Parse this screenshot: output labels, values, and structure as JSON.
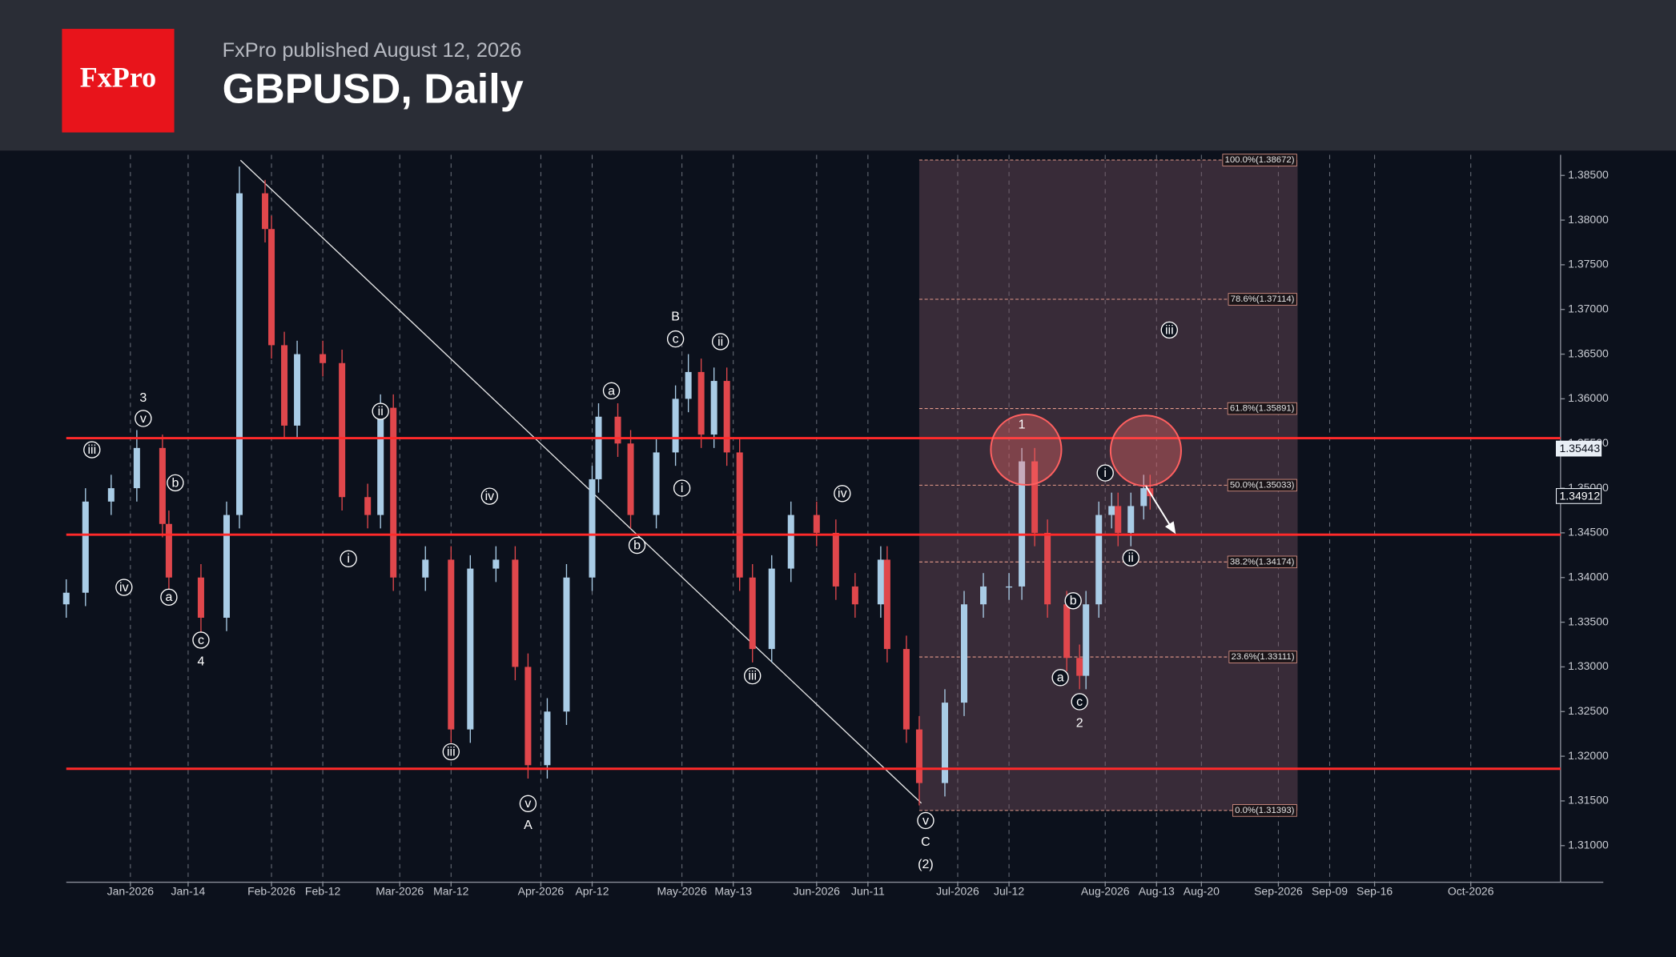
{
  "header": {
    "logo": "FxPro",
    "publisher": "FxPro published August 12, 2026",
    "title": "GBPUSD, Daily"
  },
  "chart_data": {
    "type": "candlestick",
    "x": [
      "2025-12-18",
      "2025-12-23",
      "2025-12-29",
      "2026-01-02",
      "2026-01-08",
      "2026-01-09",
      "2026-01-16",
      "2026-01-22",
      "2026-01-26",
      "2026-01-30",
      "2026-02-02",
      "2026-02-04",
      "2026-02-06",
      "2026-02-12",
      "2026-02-17",
      "2026-02-23",
      "2026-02-25",
      "2026-02-27",
      "2026-03-06",
      "2026-03-12",
      "2026-03-17",
      "2026-03-23",
      "2026-03-26",
      "2026-03-30",
      "2026-04-02",
      "2026-04-07",
      "2026-04-13",
      "2026-04-14",
      "2026-04-17",
      "2026-04-21",
      "2026-04-27",
      "2026-04-30",
      "2026-05-04",
      "2026-05-06",
      "2026-05-08",
      "2026-05-12",
      "2026-05-14",
      "2026-05-18",
      "2026-05-21",
      "2026-05-26",
      "2026-06-01",
      "2026-06-04",
      "2026-06-09",
      "2026-06-15",
      "2026-06-16",
      "2026-06-19",
      "2026-06-23",
      "2026-06-29",
      "2026-07-02",
      "2026-07-07",
      "2026-07-13",
      "2026-07-15",
      "2026-07-17",
      "2026-07-21",
      "2026-07-24",
      "2026-07-28",
      "2026-07-29",
      "2026-07-31",
      "2026-08-04",
      "2026-08-05",
      "2026-08-07",
      "2026-08-11",
      "2026-08-12"
    ],
    "open": [
      1.337,
      1.3383,
      1.3485,
      1.35,
      1.3545,
      1.346,
      1.34,
      1.3355,
      1.347,
      1.383,
      1.379,
      1.366,
      1.357,
      1.365,
      1.364,
      1.349,
      1.347,
      1.359,
      1.34,
      1.342,
      1.323,
      1.341,
      1.342,
      1.33,
      1.319,
      1.325,
      1.34,
      1.351,
      1.358,
      1.355,
      1.347,
      1.354,
      1.36,
      1.363,
      1.356,
      1.362,
      1.354,
      1.34,
      1.332,
      1.341,
      1.347,
      1.345,
      1.339,
      1.337,
      1.342,
      1.332,
      1.323,
      1.317,
      1.326,
      1.337,
      1.339,
      1.339,
      1.353,
      1.345,
      1.337,
      1.331,
      1.329,
      1.337,
      1.347,
      1.348,
      1.345,
      1.348,
      1.35
    ],
    "high": [
      1.3398,
      1.35,
      1.3515,
      1.3565,
      1.356,
      1.3475,
      1.3415,
      1.3485,
      1.386,
      1.3845,
      1.3805,
      1.3675,
      1.3665,
      1.3665,
      1.3655,
      1.3505,
      1.3605,
      1.3605,
      1.3435,
      1.3435,
      1.3425,
      1.3435,
      1.3435,
      1.3315,
      1.3265,
      1.3415,
      1.3525,
      1.3595,
      1.3595,
      1.3565,
      1.3555,
      1.3615,
      1.365,
      1.3645,
      1.3635,
      1.3635,
      1.3555,
      1.3415,
      1.3425,
      1.3485,
      1.3485,
      1.3465,
      1.3405,
      1.3435,
      1.3435,
      1.3335,
      1.3245,
      1.3275,
      1.3385,
      1.3405,
      1.3405,
      1.3545,
      1.3545,
      1.3465,
      1.3385,
      1.3325,
      1.3385,
      1.3485,
      1.3495,
      1.3495,
      1.3495,
      1.3515,
      1.3515
    ],
    "low": [
      1.3355,
      1.3368,
      1.347,
      1.3485,
      1.3445,
      1.3385,
      1.3335,
      1.334,
      1.3455,
      1.3775,
      1.3645,
      1.3555,
      1.3555,
      1.3625,
      1.3475,
      1.3455,
      1.3455,
      1.3385,
      1.3385,
      1.3215,
      1.3215,
      1.3395,
      1.3285,
      1.3175,
      1.3175,
      1.3235,
      1.3385,
      1.3495,
      1.3535,
      1.3455,
      1.3455,
      1.3525,
      1.3585,
      1.3545,
      1.3545,
      1.3525,
      1.3385,
      1.3305,
      1.3305,
      1.3395,
      1.3435,
      1.3375,
      1.3355,
      1.3355,
      1.3305,
      1.3215,
      1.3145,
      1.3155,
      1.3245,
      1.3355,
      1.3375,
      1.3375,
      1.3435,
      1.3355,
      1.3295,
      1.3275,
      1.3275,
      1.3355,
      1.3455,
      1.3435,
      1.3435,
      1.3465,
      1.3476
    ],
    "close": [
      1.3383,
      1.3485,
      1.35,
      1.3545,
      1.346,
      1.34,
      1.3355,
      1.347,
      1.383,
      1.379,
      1.366,
      1.357,
      1.365,
      1.364,
      1.349,
      1.347,
      1.359,
      1.34,
      1.342,
      1.323,
      1.341,
      1.342,
      1.33,
      1.319,
      1.325,
      1.34,
      1.351,
      1.358,
      1.355,
      1.347,
      1.354,
      1.36,
      1.363,
      1.356,
      1.362,
      1.354,
      1.34,
      1.332,
      1.341,
      1.347,
      1.345,
      1.339,
      1.337,
      1.342,
      1.332,
      1.323,
      1.317,
      1.326,
      1.337,
      1.339,
      1.339,
      1.353,
      1.345,
      1.337,
      1.331,
      1.329,
      1.337,
      1.347,
      1.348,
      1.345,
      1.348,
      1.35,
      1.3491
    ],
    "up_color": "#a9cce6",
    "down_color": "#e0474c",
    "xlim": [
      "2025-12-18",
      "2026-10-15"
    ],
    "ylim": [
      1.3059,
      1.3873
    ],
    "xticks": [
      {
        "value": "2026-01-01",
        "label": "Jan-2026"
      },
      {
        "value": "2026-01-14",
        "label": "Jan-14"
      },
      {
        "value": "2026-02-01",
        "label": "Feb-2026"
      },
      {
        "value": "2026-02-12",
        "label": "Feb-12"
      },
      {
        "value": "2026-03-01",
        "label": "Mar-2026"
      },
      {
        "value": "2026-03-12",
        "label": "Mar-12"
      },
      {
        "value": "2026-04-01",
        "label": "Apr-2026"
      },
      {
        "value": "2026-04-12",
        "label": "Apr-12"
      },
      {
        "value": "2026-05-01",
        "label": "May-2026"
      },
      {
        "value": "2026-05-13",
        "label": "May-13"
      },
      {
        "value": "2026-06-01",
        "label": "Jun-2026"
      },
      {
        "value": "2026-06-11",
        "label": "Jun-11"
      },
      {
        "value": "2026-07-01",
        "label": "Jul-2026"
      },
      {
        "value": "2026-07-12",
        "label": "Jul-12"
      },
      {
        "value": "2026-08-01",
        "label": "Aug-2026"
      },
      {
        "value": "2026-08-13",
        "label": "Aug-13"
      },
      {
        "value": "2026-08-20",
        "label": "Aug-20"
      },
      {
        "value": "2026-09-01",
        "label": "Sep-2026"
      },
      {
        "value": "2026-09-09",
        "label": "Sep-09"
      },
      {
        "value": "2026-09-16",
        "label": "Sep-16"
      },
      {
        "value": "2026-10-01",
        "label": "Oct-2026"
      }
    ],
    "yticks": [
      {
        "value": 1.385,
        "label": "1.38500"
      },
      {
        "value": 1.38,
        "label": "1.38000"
      },
      {
        "value": 1.375,
        "label": "1.37500"
      },
      {
        "value": 1.37,
        "label": "1.37000"
      },
      {
        "value": 1.365,
        "label": "1.36500"
      },
      {
        "value": 1.36,
        "label": "1.36000"
      },
      {
        "value": 1.355,
        "label": "1.35500"
      },
      {
        "value": 1.35,
        "label": "1.35000"
      },
      {
        "value": 1.345,
        "label": "1.34500"
      },
      {
        "value": 1.34,
        "label": "1.34000"
      },
      {
        "value": 1.335,
        "label": "1.33500"
      },
      {
        "value": 1.33,
        "label": "1.33000"
      },
      {
        "value": 1.325,
        "label": "1.32500"
      },
      {
        "value": 1.32,
        "label": "1.32000"
      },
      {
        "value": 1.315,
        "label": "1.31500"
      },
      {
        "value": 1.31,
        "label": "1.31000"
      }
    ],
    "grid": "x",
    "levels": [
      1.3556,
      1.3448,
      1.3186
    ],
    "level_color": "#ff2a2a",
    "price_labels": [
      1.35443,
      1.34912
    ],
    "fib": {
      "start": "2026-06-23",
      "end": "2026-09-04",
      "levels": [
        {
          "value": 1.38672,
          "label": "100.0%(1.38672)"
        },
        {
          "value": 1.37114,
          "label": "78.6%(1.37114)"
        },
        {
          "value": 1.35891,
          "label": "61.8%(1.35891)"
        },
        {
          "value": 1.35033,
          "label": "50.0%(1.35033)"
        },
        {
          "value": 1.34174,
          "label": "38.2%(1.34174)"
        },
        {
          "value": 1.33111,
          "label": "23.6%(1.33111)"
        },
        {
          "value": 1.31393,
          "label": "0.0%(1.31393)"
        }
      ]
    },
    "annotations": [
      {
        "text": "iii",
        "x": "2025-12-24",
        "y": 1.3543,
        "circled": true
      },
      {
        "text": "3",
        "x": "2026-01-05",
        "y": 1.3601,
        "circled": false
      },
      {
        "text": "v",
        "x": "2026-01-05",
        "y": 1.3578,
        "circled": true
      },
      {
        "text": "iv",
        "x": "2025-12-31",
        "y": 1.3389,
        "circled": true
      },
      {
        "text": "b",
        "x": "2026-01-12",
        "y": 1.3506,
        "circled": true
      },
      {
        "text": "a",
        "x": "2026-01-09",
        "y": 1.3378,
        "circled": true
      },
      {
        "text": "c",
        "x": "2026-01-16",
        "y": 1.333,
        "circled": true
      },
      {
        "text": "4",
        "x": "2026-01-16",
        "y": 1.3306,
        "circled": false
      },
      {
        "text": "ii",
        "x": "2026-02-25",
        "y": 1.3586,
        "circled": true
      },
      {
        "text": "i",
        "x": "2026-02-18",
        "y": 1.3421,
        "circled": true
      },
      {
        "text": "iv",
        "x": "2026-03-20",
        "y": 1.3491,
        "circled": true
      },
      {
        "text": "iii",
        "x": "2026-03-12",
        "y": 1.3205,
        "circled": true
      },
      {
        "text": "v",
        "x": "2026-03-30",
        "y": 1.3147,
        "circled": true
      },
      {
        "text": "A",
        "x": "2026-03-30",
        "y": 1.3123,
        "circled": false
      },
      {
        "text": "a",
        "x": "2026-04-16",
        "y": 1.3609,
        "circled": true
      },
      {
        "text": "B",
        "x": "2026-04-30",
        "y": 1.3692,
        "circled": false
      },
      {
        "text": "c",
        "x": "2026-04-30",
        "y": 1.3667,
        "circled": true
      },
      {
        "text": "ii",
        "x": "2026-05-11",
        "y": 1.3664,
        "circled": true
      },
      {
        "text": "i",
        "x": "2026-05-01",
        "y": 1.35,
        "circled": true
      },
      {
        "text": "b",
        "x": "2026-04-22",
        "y": 1.3436,
        "circled": true
      },
      {
        "text": "iii",
        "x": "2026-05-18",
        "y": 1.329,
        "circled": true
      },
      {
        "text": "iv",
        "x": "2026-06-05",
        "y": 1.3494,
        "circled": true
      },
      {
        "text": "v",
        "x": "2026-06-24",
        "y": 1.3128,
        "circled": true
      },
      {
        "text": "C",
        "x": "2026-06-24",
        "y": 1.3104,
        "circled": false
      },
      {
        "text": "(2)",
        "x": "2026-06-24",
        "y": 1.3079,
        "circled": false
      },
      {
        "text": "1",
        "x": "2026-07-15",
        "y": 1.3571,
        "circled": false
      },
      {
        "text": "i",
        "x": "2026-08-03",
        "y": 1.3517,
        "circled": true
      },
      {
        "text": "b",
        "x": "2026-07-27",
        "y": 1.3374,
        "circled": true
      },
      {
        "text": "a",
        "x": "2026-07-23",
        "y": 1.3288,
        "circled": true
      },
      {
        "text": "c",
        "x": "2026-07-28",
        "y": 1.3261,
        "circled": true
      },
      {
        "text": "2",
        "x": "2026-07-28",
        "y": 1.3237,
        "circled": false
      },
      {
        "text": "ii",
        "x": "2026-08-07",
        "y": 1.3422,
        "circled": true
      },
      {
        "text": "iii",
        "x": "2026-08-15",
        "y": 1.3677,
        "circled": true
      }
    ]
  }
}
